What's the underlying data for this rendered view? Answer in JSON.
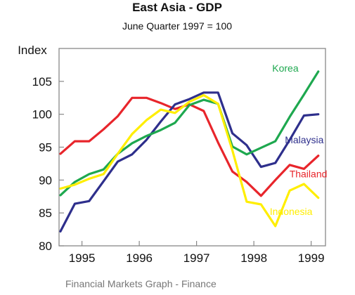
{
  "chart_data": {
    "type": "line",
    "title": "East Asia - GDP",
    "subtitle": "June Quarter 1997 = 100",
    "ylabel": "Index",
    "xlabel": "",
    "xlim": [
      1994.6,
      1999.25
    ],
    "ylim": [
      80,
      110
    ],
    "yticks": [
      80,
      85,
      90,
      95,
      100,
      105
    ],
    "xticks": [
      {
        "value": 1995,
        "label": "1995"
      },
      {
        "value": 1996,
        "label": "1996"
      },
      {
        "value": 1997,
        "label": "1997"
      },
      {
        "value": 1998,
        "label": "1998"
      },
      {
        "value": 1999,
        "label": "1999"
      }
    ],
    "grid": false,
    "x": [
      1994.625,
      1994.875,
      1995.125,
      1995.375,
      1995.625,
      1995.875,
      1996.125,
      1996.375,
      1996.625,
      1996.875,
      1997.125,
      1997.375,
      1997.625,
      1997.875,
      1998.125,
      1998.375,
      1998.625,
      1998.875,
      1999.125
    ],
    "series": [
      {
        "name": "Korea",
        "color": "#1ea84f",
        "values": [
          87.7,
          89.7,
          90.9,
          91.6,
          94.0,
          95.6,
          96.7,
          97.6,
          98.7,
          101.4,
          102.2,
          101.6,
          95.1,
          93.9,
          94.9,
          95.9,
          99.6,
          103.0,
          106.5
        ]
      },
      {
        "name": "Malaysia",
        "color": "#2e2f8c",
        "values": [
          82.2,
          86.4,
          86.8,
          89.8,
          92.8,
          93.9,
          96.1,
          98.9,
          101.5,
          102.3,
          103.3,
          103.3,
          97.1,
          95.3,
          92.0,
          92.6,
          96.1,
          99.8,
          100.0
        ]
      },
      {
        "name": "Thailand",
        "color": "#e8252b",
        "values": [
          94.0,
          95.9,
          95.9,
          97.7,
          99.7,
          102.5,
          102.5,
          101.7,
          100.8,
          101.5,
          100.5,
          95.7,
          91.3,
          89.7,
          87.6,
          90.0,
          92.3,
          91.7,
          93.7
        ]
      },
      {
        "name": "Indonesia",
        "color": "#ffee00",
        "values": [
          88.7,
          89.3,
          90.2,
          90.9,
          94.0,
          97.0,
          99.1,
          100.7,
          100.2,
          101.9,
          102.9,
          101.6,
          94.5,
          86.7,
          86.3,
          83.0,
          88.4,
          89.4,
          87.3
        ]
      }
    ]
  },
  "footer": "Financial Markets Graph - Finance"
}
